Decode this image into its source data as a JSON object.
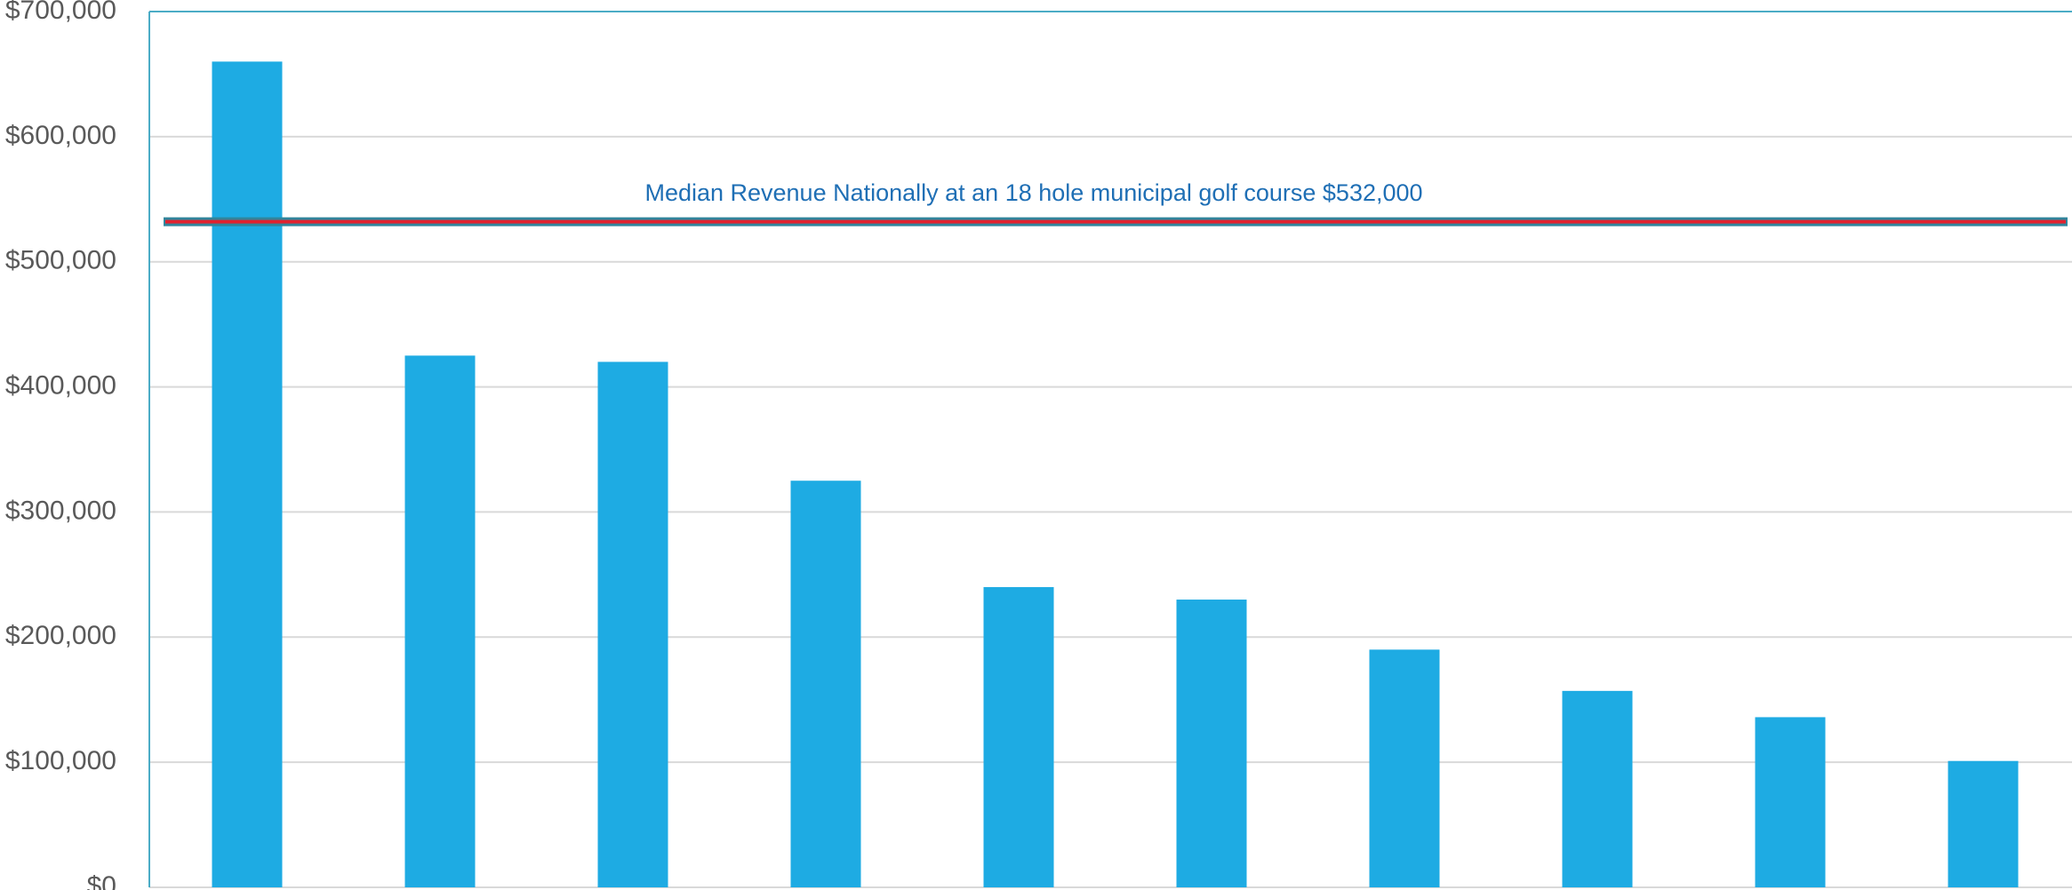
{
  "chart_data": {
    "type": "bar",
    "categories": [
      null,
      null,
      null,
      null,
      null,
      null,
      null,
      null,
      null,
      null
    ],
    "values": [
      660000,
      425000,
      420000,
      325000,
      240000,
      230000,
      190000,
      157000,
      136000,
      101000
    ],
    "color": "#1eabe3",
    "ylim": [
      0,
      700000
    ],
    "yticks": [
      {
        "value": 0,
        "label": "$0"
      },
      {
        "value": 100000,
        "label": "$100,000"
      },
      {
        "value": 200000,
        "label": "$200,000"
      },
      {
        "value": 300000,
        "label": "$300,000"
      },
      {
        "value": 400000,
        "label": "$400,000"
      },
      {
        "value": 500000,
        "label": "$500,000"
      },
      {
        "value": 600000,
        "label": "$600,000"
      },
      {
        "value": 700000,
        "label": "$700,000"
      }
    ],
    "grid": true,
    "reference_line": {
      "value": 532000,
      "label": "Median Revenue Nationally at an 18 hole municipal golf course $532,000"
    }
  }
}
